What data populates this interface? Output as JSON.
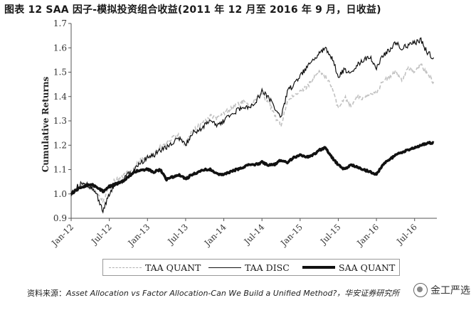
{
  "figure_title": "图表 12 SAA 因子-模拟投资组合收益(2011 年 12 月至 2016 年 9 月，日收益)",
  "source_label": "资料来源：",
  "source_text": "Asset Allocation vs Factor Allocation-Can We Build a Unified Method?，华安证券研究所",
  "watermark": "金工严选",
  "watermark_icon": "wechat-logo-icon",
  "colors": {
    "taa_quant": "#c0c0c0",
    "taa_disc": "#111111",
    "saa_quant": "#111111",
    "axis": "#555555"
  },
  "chart_data": {
    "type": "line",
    "title": "",
    "xlabel": "",
    "ylabel": "Cumulative Returns",
    "xlim": [
      0,
      57.5
    ],
    "ylim": [
      0.9,
      1.7
    ],
    "yticks": [
      0.9,
      1.0,
      1.1,
      1.2,
      1.3,
      1.4,
      1.5,
      1.6,
      1.7
    ],
    "ytick_labels": [
      "0.9",
      "1.0",
      "1.1",
      "1.2",
      "1.3",
      "1.4",
      "1.5",
      "1.6",
      "1.7"
    ],
    "xticks": [
      0,
      6,
      12,
      18,
      24,
      30,
      36,
      42,
      48,
      54
    ],
    "xtick_labels": [
      "Jan-12",
      "Jul-12",
      "Jan-13",
      "Jul-13",
      "Jan-14",
      "Jul-14",
      "Jan-15",
      "Jul-15",
      "Jan-16",
      "Jul-16"
    ],
    "x_units": "months since Jan-2012",
    "legend_position": "bottom",
    "series": [
      {
        "name": "TAA QUANT",
        "style": "dashed-gray",
        "x": [
          0,
          1,
          2,
          3,
          4,
          5,
          6,
          7,
          8,
          9,
          10,
          11,
          12,
          13,
          14,
          15,
          16,
          17,
          18,
          19,
          20,
          21,
          22,
          23,
          24,
          25,
          26,
          27,
          28,
          29,
          30,
          31,
          32,
          33,
          34,
          35,
          36,
          37,
          38,
          39,
          40,
          41,
          42,
          43,
          44,
          45,
          46,
          47,
          48,
          49,
          50,
          51,
          52,
          53,
          54,
          55,
          56,
          57
        ],
        "values": [
          1.0,
          1.02,
          1.04,
          1.03,
          1.01,
          0.97,
          1.03,
          1.06,
          1.07,
          1.09,
          1.11,
          1.14,
          1.15,
          1.17,
          1.19,
          1.21,
          1.23,
          1.24,
          1.2,
          1.26,
          1.28,
          1.3,
          1.32,
          1.31,
          1.33,
          1.35,
          1.37,
          1.38,
          1.36,
          1.39,
          1.41,
          1.38,
          1.32,
          1.28,
          1.38,
          1.4,
          1.42,
          1.44,
          1.47,
          1.5,
          1.48,
          1.44,
          1.35,
          1.4,
          1.36,
          1.4,
          1.39,
          1.41,
          1.42,
          1.46,
          1.48,
          1.5,
          1.47,
          1.52,
          1.5,
          1.53,
          1.49,
          1.46
        ]
      },
      {
        "name": "TAA DISC",
        "style": "solid-thin",
        "x": [
          0,
          1,
          2,
          3,
          4,
          5,
          6,
          7,
          8,
          9,
          10,
          11,
          12,
          13,
          14,
          15,
          16,
          17,
          18,
          19,
          20,
          21,
          22,
          23,
          24,
          25,
          26,
          27,
          28,
          29,
          30,
          31,
          32,
          33,
          34,
          35,
          36,
          37,
          38,
          39,
          40,
          41,
          42,
          43,
          44,
          45,
          46,
          47,
          48,
          49,
          50,
          51,
          52,
          53,
          54,
          55,
          56,
          57
        ],
        "values": [
          1.0,
          1.03,
          1.05,
          1.03,
          1.0,
          0.93,
          1.0,
          1.04,
          1.05,
          1.08,
          1.1,
          1.13,
          1.15,
          1.16,
          1.18,
          1.19,
          1.21,
          1.23,
          1.2,
          1.25,
          1.26,
          1.28,
          1.3,
          1.28,
          1.3,
          1.32,
          1.34,
          1.36,
          1.35,
          1.38,
          1.42,
          1.4,
          1.35,
          1.31,
          1.42,
          1.45,
          1.48,
          1.52,
          1.55,
          1.58,
          1.6,
          1.56,
          1.48,
          1.51,
          1.49,
          1.53,
          1.55,
          1.56,
          1.52,
          1.57,
          1.59,
          1.62,
          1.6,
          1.61,
          1.62,
          1.63,
          1.58,
          1.56
        ]
      },
      {
        "name": "SAA QUANT",
        "style": "solid-thick",
        "x": [
          0,
          1,
          2,
          3,
          4,
          5,
          6,
          7,
          8,
          9,
          10,
          11,
          12,
          13,
          14,
          15,
          16,
          17,
          18,
          19,
          20,
          21,
          22,
          23,
          24,
          25,
          26,
          27,
          28,
          29,
          30,
          31,
          32,
          33,
          34,
          35,
          36,
          37,
          38,
          39,
          40,
          41,
          42,
          43,
          44,
          45,
          46,
          47,
          48,
          49,
          50,
          51,
          52,
          53,
          54,
          55,
          56,
          57
        ],
        "values": [
          1.0,
          1.02,
          1.03,
          1.04,
          1.03,
          1.01,
          1.03,
          1.04,
          1.05,
          1.07,
          1.09,
          1.1,
          1.1,
          1.09,
          1.1,
          1.06,
          1.07,
          1.08,
          1.06,
          1.08,
          1.09,
          1.1,
          1.1,
          1.08,
          1.08,
          1.09,
          1.1,
          1.11,
          1.12,
          1.12,
          1.13,
          1.12,
          1.12,
          1.14,
          1.13,
          1.15,
          1.16,
          1.15,
          1.16,
          1.18,
          1.19,
          1.15,
          1.12,
          1.1,
          1.12,
          1.11,
          1.1,
          1.09,
          1.08,
          1.12,
          1.14,
          1.16,
          1.17,
          1.18,
          1.19,
          1.2,
          1.21,
          1.21
        ]
      }
    ]
  }
}
